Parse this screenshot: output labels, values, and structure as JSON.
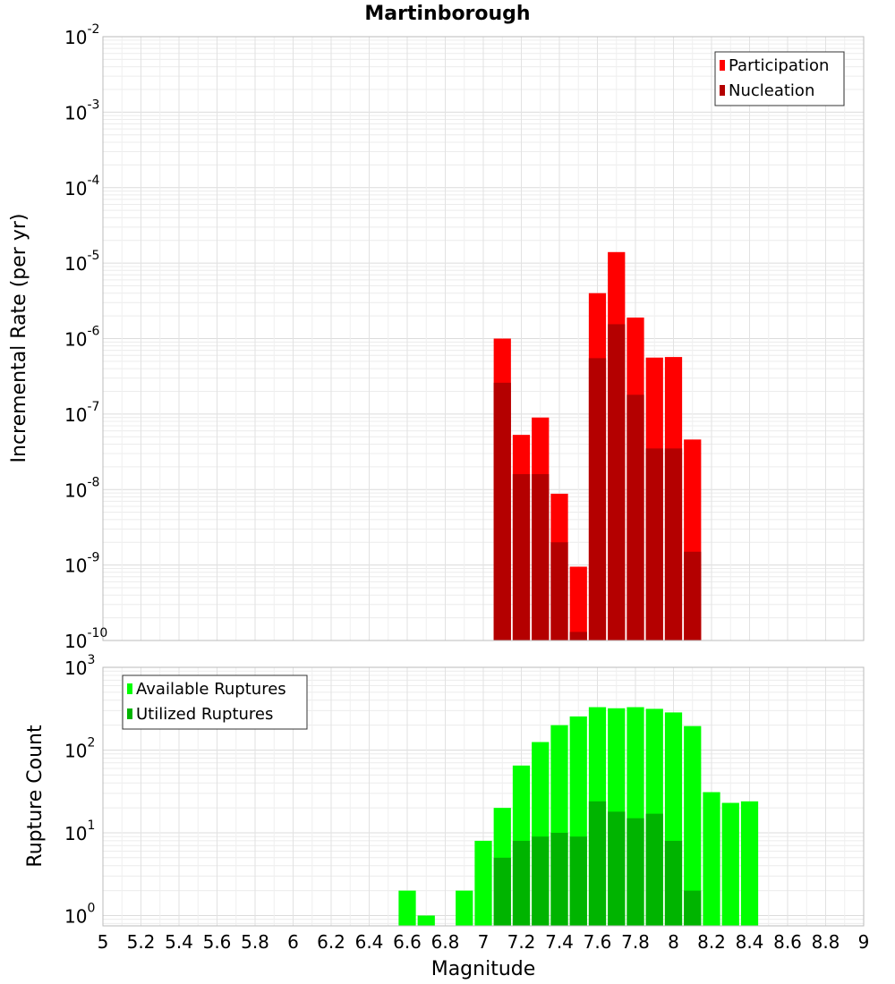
{
  "chart_data": {
    "title": "Martinborough",
    "xlabel": "Magnitude",
    "x_ticks": [
      "5",
      "5.2",
      "5.4",
      "5.6",
      "5.8",
      "6",
      "6.2",
      "6.4",
      "6.6",
      "6.8",
      "7",
      "7.2",
      "7.4",
      "7.6",
      "7.8",
      "8",
      "8.2",
      "8.4",
      "8.6",
      "8.8",
      "9"
    ],
    "xlim": [
      5,
      9
    ],
    "bin_width": 0.1,
    "grid": true,
    "panels": [
      {
        "type": "bar",
        "ylabel": "Incremental Rate (per yr)",
        "yscale": "log",
        "ylim": [
          1e-10,
          0.01
        ],
        "y_tick_exponents": [
          -10,
          -9,
          -8,
          -7,
          -6,
          -5,
          -4,
          -3,
          -2
        ],
        "legend_position": "top-right",
        "x": [
          7.1,
          7.2,
          7.3,
          7.4,
          7.5,
          7.6,
          7.7,
          7.8,
          7.9,
          8.0,
          8.1
        ],
        "series": [
          {
            "name": "Participation",
            "color": "#ff0000",
            "values": [
              1e-06,
              5.3e-08,
              9e-08,
              8.8e-09,
              9.5e-10,
              4e-06,
              1.4e-05,
              1.9e-06,
              5.6e-07,
              5.7e-07,
              4.6e-08
            ]
          },
          {
            "name": "Nucleation",
            "color": "#b40000",
            "values": [
              2.6e-07,
              1.6e-08,
              1.6e-08,
              2e-09,
              1.3e-10,
              5.5e-07,
              1.55e-06,
              1.8e-07,
              3.5e-08,
              3.5e-08,
              1.5e-09
            ]
          }
        ]
      },
      {
        "type": "bar",
        "ylabel": "Rupture Count",
        "yscale": "log",
        "ylim": [
          0.75,
          1000
        ],
        "y_tick_exponents": [
          0,
          1,
          2,
          3
        ],
        "legend_position": "top-left",
        "x": [
          6.6,
          6.7,
          6.9,
          7.0,
          7.1,
          7.2,
          7.3,
          7.4,
          7.5,
          7.6,
          7.7,
          7.8,
          7.9,
          8.0,
          8.1,
          8.2,
          8.3,
          8.4
        ],
        "series": [
          {
            "name": "Available Ruptures",
            "color": "#00ff00",
            "values": [
              2,
              1,
              2,
              8,
              20,
              65,
              125,
              200,
              255,
              330,
              320,
              330,
              315,
              285,
              195,
              31,
              23,
              24
            ]
          },
          {
            "name": "Utilized Ruptures",
            "color": "#00b400",
            "values": [
              0,
              0,
              0,
              0,
              5,
              8,
              9,
              10,
              9,
              24,
              18,
              15,
              17,
              8,
              2,
              0,
              0,
              0
            ]
          }
        ]
      }
    ]
  }
}
